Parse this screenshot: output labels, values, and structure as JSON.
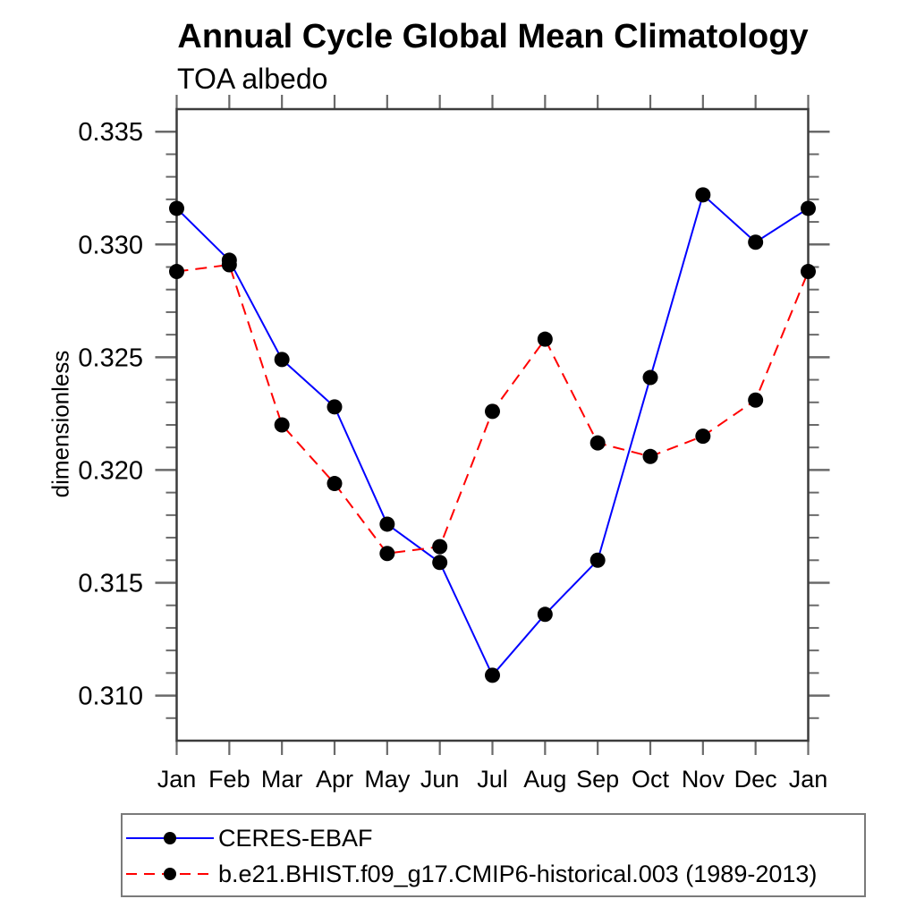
{
  "title": "Annual Cycle Global Mean Climatology",
  "subtitle": "TOA albedo",
  "y_axis_title": "dimensionless",
  "colors": {
    "background": "#ffffff",
    "axis_frame": "#3c3c3c",
    "tick": "#6a6a6a",
    "text": "#000000",
    "marker": "#000000",
    "legend_border": "#7a7a7a",
    "obs_line": "#0000ff",
    "model_line": "#ff0000"
  },
  "chart_data": {
    "type": "line",
    "title": "Annual Cycle Global Mean Climatology",
    "subtitle": "TOA albedo",
    "xlabel": "",
    "ylabel": "dimensionless",
    "categories": [
      "Jan",
      "Feb",
      "Mar",
      "Apr",
      "May",
      "Jun",
      "Jul",
      "Aug",
      "Sep",
      "Oct",
      "Nov",
      "Dec",
      "Jan"
    ],
    "series": [
      {
        "name": "CERES-EBAF",
        "color": "#0000ff",
        "line_style": "solid",
        "marker": "filled-circle",
        "marker_color": "#000000",
        "values": [
          0.3316,
          0.3293,
          0.3249,
          0.3228,
          0.3176,
          0.3159,
          0.3109,
          0.3136,
          0.316,
          0.3241,
          0.3322,
          0.3301,
          0.3316
        ]
      },
      {
        "name": "b.e21.BHIST.f09_g17.CMIP6-historical.003 (1989-2013)",
        "color": "#ff0000",
        "line_style": "dashed",
        "marker": "filled-circle",
        "marker_color": "#000000",
        "values": [
          0.3288,
          0.3291,
          0.322,
          0.3194,
          0.3163,
          0.3166,
          0.3226,
          0.3258,
          0.3212,
          0.3206,
          0.3215,
          0.3231,
          0.3288
        ]
      }
    ],
    "ylim": [
      0.308,
      0.336
    ],
    "yticks_major": [
      0.31,
      0.315,
      0.32,
      0.325,
      0.33,
      0.335
    ],
    "ytick_labels": [
      "0.310",
      "0.315",
      "0.320",
      "0.325",
      "0.330",
      "0.335"
    ],
    "ytick_minor_step": 0.001,
    "grid": false,
    "tick_direction": "out",
    "legend_position": "bottom-left"
  },
  "legend": {
    "entries": [
      {
        "label": "CERES-EBAF"
      },
      {
        "label": "b.e21.BHIST.f09_g17.CMIP6-historical.003 (1989-2013)"
      }
    ]
  }
}
